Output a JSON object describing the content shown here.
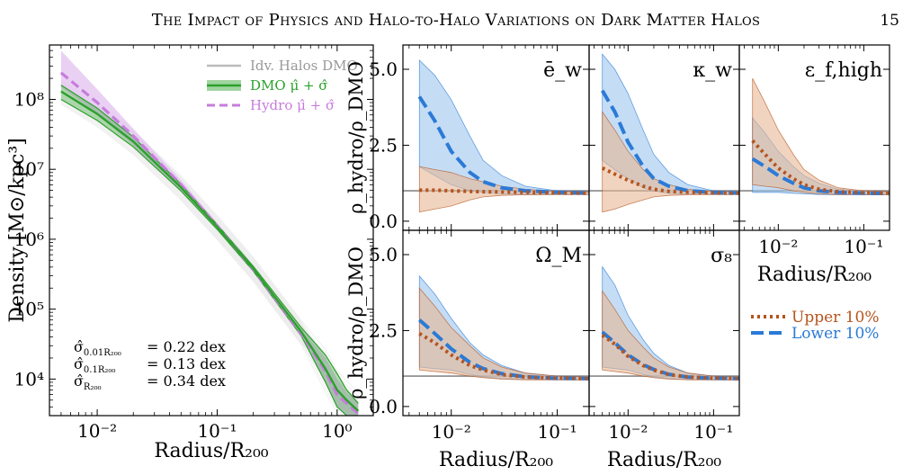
{
  "header": {
    "running_title": "The Impact of Physics and Halo-to-Halo Variations on Dark Matter Halos",
    "page_number": "15"
  },
  "legend_left": [
    "Idv. Halos DMO",
    "DMO μ̂ + σ̂",
    "Hydro μ̂ + σ̂"
  ],
  "legend_right": [
    "Upper 10%",
    "Lower 10%"
  ],
  "stats": [
    {
      "label": "σ̂",
      "sub": "0.01R₂₀₀",
      "value": "= 0.22 dex"
    },
    {
      "label": "σ̂",
      "sub": "0.1R₂₀₀",
      "value": "= 0.13 dex"
    },
    {
      "label": "σ̂",
      "sub": "R₂₀₀",
      "value": "= 0.34 dex"
    }
  ],
  "colors": {
    "dmo": "#2ca02c",
    "hydro": "#c77cdc",
    "hydro_fill": "#e3c2f0",
    "upper": "#b5541e",
    "upper_fill": "#e8b894",
    "lower": "#2b7ad6",
    "lower_fill": "#9cc7ef",
    "idv": "#bbbbbb",
    "ref": "#888888"
  },
  "chart_data": [
    {
      "type": "line",
      "xlabel": "Radius/R₂₀₀",
      "ylabel": "Density [M⊙/kpc³]",
      "xscale": "log",
      "yscale": "log",
      "xlim": [
        0.004,
        2.0
      ],
      "ylim": [
        3000,
        600000000
      ],
      "x_ticks": [
        "10⁻²",
        "10⁻¹",
        "10⁰"
      ],
      "y_ticks": [
        "10⁴",
        "10⁵",
        "10⁶",
        "10⁷",
        "10⁸"
      ],
      "series": [
        {
          "name": "DMO μ̂ + σ̂",
          "x": [
            0.005,
            0.01,
            0.02,
            0.05,
            0.1,
            0.2,
            0.5,
            0.8,
            1.0,
            1.2,
            1.5
          ],
          "y": [
            130000000,
            62000000,
            25000000,
            5500000,
            1500000,
            380000,
            48000,
            14000,
            7000,
            5000,
            3500
          ],
          "band_lo": [
            100000000,
            50000000,
            21000000,
            4900000,
            1380000,
            350000,
            42000,
            9000,
            4000,
            3000,
            2500
          ],
          "band_hi": [
            160000000,
            75000000,
            29000000,
            6100000,
            1620000,
            410000,
            55000,
            22000,
            12000,
            7000,
            4500
          ]
        },
        {
          "name": "Hydro μ̂ + σ̂",
          "x": [
            0.005,
            0.01,
            0.02,
            0.05,
            0.1,
            0.2,
            0.5,
            0.8,
            1.0,
            1.2,
            1.5
          ],
          "y": [
            240000000,
            90000000,
            30000000,
            6000000,
            1550000,
            370000,
            45000,
            13000,
            6000,
            4500,
            3200
          ],
          "band_lo": [
            150000000,
            63000000,
            22000000,
            5000000,
            1380000,
            340000,
            40000,
            9000,
            4000,
            3000,
            2200
          ],
          "band_hi": [
            500000000,
            140000000,
            38000000,
            7000000,
            1700000,
            400000,
            52000,
            20000,
            10000,
            6500,
            4500
          ]
        }
      ]
    },
    {
      "type": "line",
      "panel_label": "ē_w",
      "xscale": "log",
      "ylim": [
        -0.3,
        5.8
      ],
      "ylabel": "ρ_hydro/ρ_DMO",
      "y_ticks": [
        "0.0",
        "2.5",
        "5.0"
      ],
      "reference_line": 1.0,
      "x": [
        0.005,
        0.007,
        0.01,
        0.015,
        0.02,
        0.03,
        0.05,
        0.1,
        0.2
      ],
      "series": [
        {
          "name": "Upper 10%",
          "values": [
            1.02,
            1.02,
            1.0,
            0.98,
            0.97,
            0.96,
            0.95,
            0.93,
            0.92
          ],
          "band_lo": [
            0.3,
            0.4,
            0.5,
            0.7,
            0.8,
            0.85,
            0.87,
            0.88,
            0.88
          ],
          "band_hi": [
            1.8,
            1.7,
            1.6,
            1.4,
            1.3,
            1.15,
            1.05,
            0.98,
            0.96
          ]
        },
        {
          "name": "Lower 10%",
          "values": [
            4.1,
            3.3,
            2.3,
            1.6,
            1.3,
            1.1,
            1.0,
            0.95,
            0.93
          ],
          "band_lo": [
            1.8,
            1.5,
            1.2,
            1.0,
            0.95,
            0.9,
            0.88,
            0.88,
            0.88
          ],
          "band_hi": [
            5.3,
            4.8,
            4.0,
            2.8,
            2.0,
            1.5,
            1.15,
            1.0,
            0.97
          ]
        }
      ]
    },
    {
      "type": "line",
      "panel_label": "κ_w",
      "xscale": "log",
      "ylim": [
        -0.3,
        5.8
      ],
      "reference_line": 1.0,
      "x": [
        0.005,
        0.007,
        0.01,
        0.015,
        0.02,
        0.03,
        0.05,
        0.1,
        0.2
      ],
      "series": [
        {
          "name": "Upper 10%",
          "values": [
            1.75,
            1.55,
            1.35,
            1.15,
            1.05,
            0.98,
            0.95,
            0.93,
            0.92
          ],
          "band_lo": [
            0.3,
            0.4,
            0.55,
            0.7,
            0.8,
            0.85,
            0.87,
            0.88,
            0.88
          ],
          "band_hi": [
            3.6,
            3.0,
            2.3,
            1.7,
            1.4,
            1.2,
            1.05,
            0.98,
            0.96
          ]
        },
        {
          "name": "Lower 10%",
          "values": [
            4.3,
            3.6,
            2.6,
            1.8,
            1.4,
            1.15,
            1.0,
            0.95,
            0.93
          ],
          "band_lo": [
            2.0,
            1.7,
            1.4,
            1.1,
            1.0,
            0.92,
            0.9,
            0.88,
            0.88
          ],
          "band_hi": [
            5.5,
            5.0,
            4.2,
            3.0,
            2.2,
            1.6,
            1.2,
            1.0,
            0.97
          ]
        }
      ]
    },
    {
      "type": "line",
      "panel_label": "ε_f,high",
      "xscale": "log",
      "ylim": [
        -0.3,
        5.8
      ],
      "reference_line": 1.0,
      "xlabel": "Radius/R₂₀₀",
      "x_ticks": [
        "10⁻²",
        "10⁻¹"
      ],
      "x": [
        0.005,
        0.007,
        0.01,
        0.015,
        0.02,
        0.03,
        0.05,
        0.1,
        0.2
      ],
      "series": [
        {
          "name": "Upper 10%",
          "values": [
            2.65,
            2.2,
            1.75,
            1.4,
            1.2,
            1.05,
            0.97,
            0.93,
            0.92
          ],
          "band_lo": [
            1.2,
            1.15,
            1.1,
            1.0,
            0.95,
            0.9,
            0.88,
            0.88,
            0.88
          ],
          "band_hi": [
            4.7,
            3.9,
            3.0,
            2.2,
            1.7,
            1.35,
            1.1,
            1.0,
            0.97
          ]
        },
        {
          "name": "Lower 10%",
          "values": [
            2.05,
            1.8,
            1.5,
            1.25,
            1.1,
            1.0,
            0.95,
            0.92,
            0.91
          ],
          "band_lo": [
            0.95,
            0.95,
            0.95,
            0.92,
            0.9,
            0.88,
            0.87,
            0.87,
            0.87
          ],
          "band_hi": [
            3.4,
            2.9,
            2.3,
            1.8,
            1.5,
            1.25,
            1.05,
            0.98,
            0.96
          ]
        }
      ]
    },
    {
      "type": "line",
      "panel_label": "Ω_M",
      "xscale": "log",
      "ylim": [
        -0.3,
        5.8
      ],
      "ylabel": "ρ_hydro/ρ_DMO",
      "y_ticks": [
        "0.0",
        "2.5",
        "5.0"
      ],
      "xlabel": "Radius/R₂₀₀",
      "x_ticks": [
        "10⁻²",
        "10⁻¹"
      ],
      "reference_line": 1.0,
      "x": [
        0.005,
        0.007,
        0.01,
        0.015,
        0.02,
        0.03,
        0.05,
        0.1,
        0.2
      ],
      "series": [
        {
          "name": "Upper 10%",
          "values": [
            2.4,
            2.1,
            1.7,
            1.35,
            1.2,
            1.05,
            0.97,
            0.93,
            0.92
          ],
          "band_lo": [
            1.2,
            1.15,
            1.1,
            1.0,
            0.95,
            0.9,
            0.88,
            0.88,
            0.88
          ],
          "band_hi": [
            3.9,
            3.3,
            2.6,
            2.0,
            1.6,
            1.3,
            1.1,
            1.0,
            0.97
          ]
        },
        {
          "name": "Lower 10%",
          "values": [
            2.85,
            2.4,
            1.9,
            1.45,
            1.25,
            1.08,
            0.98,
            0.93,
            0.92
          ],
          "band_lo": [
            1.3,
            1.25,
            1.2,
            1.05,
            0.98,
            0.92,
            0.89,
            0.88,
            0.88
          ],
          "band_hi": [
            4.3,
            3.7,
            2.9,
            2.1,
            1.7,
            1.35,
            1.1,
            1.0,
            0.97
          ]
        }
      ]
    },
    {
      "type": "line",
      "panel_label": "σ₈",
      "xscale": "log",
      "ylim": [
        -0.3,
        5.8
      ],
      "xlabel": "Radius/R₂₀₀",
      "x_ticks": [
        "10⁻²",
        "10⁻¹"
      ],
      "reference_line": 1.0,
      "x": [
        0.005,
        0.007,
        0.01,
        0.015,
        0.02,
        0.03,
        0.05,
        0.1,
        0.2
      ],
      "series": [
        {
          "name": "Upper 10%",
          "values": [
            2.35,
            2.05,
            1.65,
            1.35,
            1.2,
            1.05,
            0.97,
            0.93,
            0.92
          ],
          "band_lo": [
            1.2,
            1.15,
            1.1,
            1.0,
            0.95,
            0.9,
            0.88,
            0.88,
            0.88
          ],
          "band_hi": [
            3.8,
            3.2,
            2.5,
            1.95,
            1.6,
            1.3,
            1.1,
            1.0,
            0.97
          ]
        },
        {
          "name": "Lower 10%",
          "values": [
            2.45,
            2.1,
            1.7,
            1.38,
            1.22,
            1.06,
            0.97,
            0.93,
            0.92
          ],
          "band_lo": [
            1.3,
            1.25,
            1.2,
            1.05,
            0.98,
            0.92,
            0.89,
            0.88,
            0.88
          ],
          "band_hi": [
            4.6,
            4.0,
            3.0,
            2.2,
            1.75,
            1.35,
            1.1,
            1.0,
            0.97
          ]
        }
      ]
    }
  ]
}
